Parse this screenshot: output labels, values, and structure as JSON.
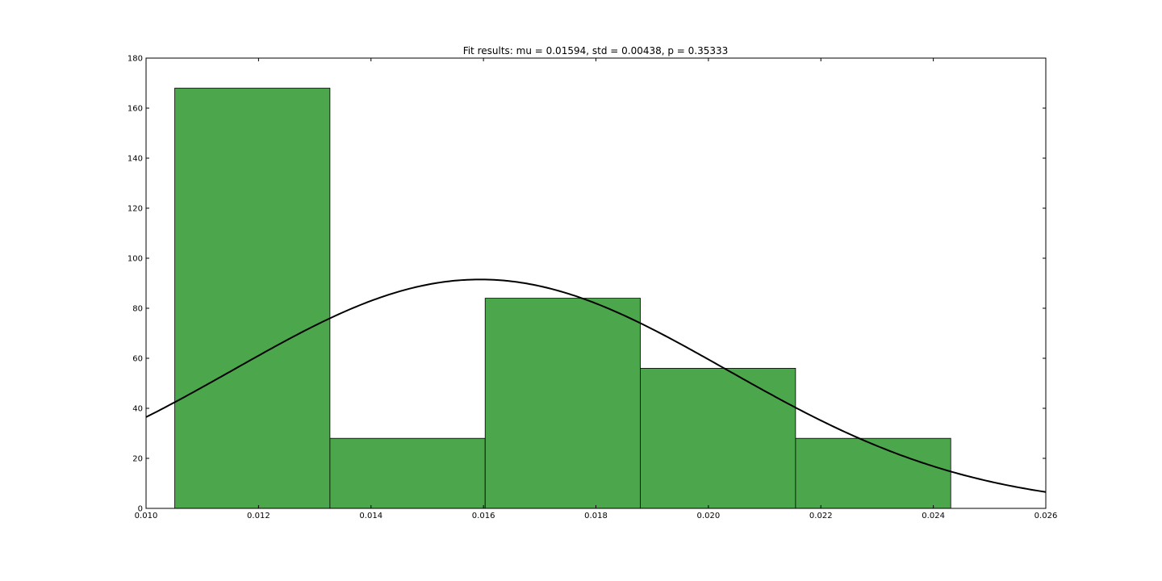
{
  "chart_data": {
    "type": "bar",
    "title": "Fit results: mu = 0.01594,  std = 0.00438, p = 0.35333",
    "xlabel": "",
    "ylabel": "",
    "xlim": [
      0.01,
      0.026
    ],
    "ylim": [
      0,
      180
    ],
    "x_ticks": [
      "0.010",
      "0.012",
      "0.014",
      "0.016",
      "0.018",
      "0.020",
      "0.022",
      "0.024",
      "0.026"
    ],
    "y_ticks": [
      "0",
      "20",
      "40",
      "60",
      "80",
      "100",
      "120",
      "140",
      "160",
      "180"
    ],
    "bins": [
      {
        "x0": 0.01051,
        "x1": 0.01327,
        "value": 168
      },
      {
        "x0": 0.01327,
        "x1": 0.01603,
        "value": 28
      },
      {
        "x0": 0.01603,
        "x1": 0.01879,
        "value": 84
      },
      {
        "x0": 0.01879,
        "x1": 0.02155,
        "value": 56
      },
      {
        "x0": 0.02155,
        "x1": 0.02431,
        "value": 28
      }
    ],
    "fit_curve": {
      "type": "normal_pdf",
      "mu": 0.01594,
      "std": 0.00438
    },
    "grid": false,
    "colors": {
      "bar_fill": "#4ca64c",
      "bar_edge": "#000000",
      "curve": "#000000",
      "axes": "#000000"
    }
  }
}
